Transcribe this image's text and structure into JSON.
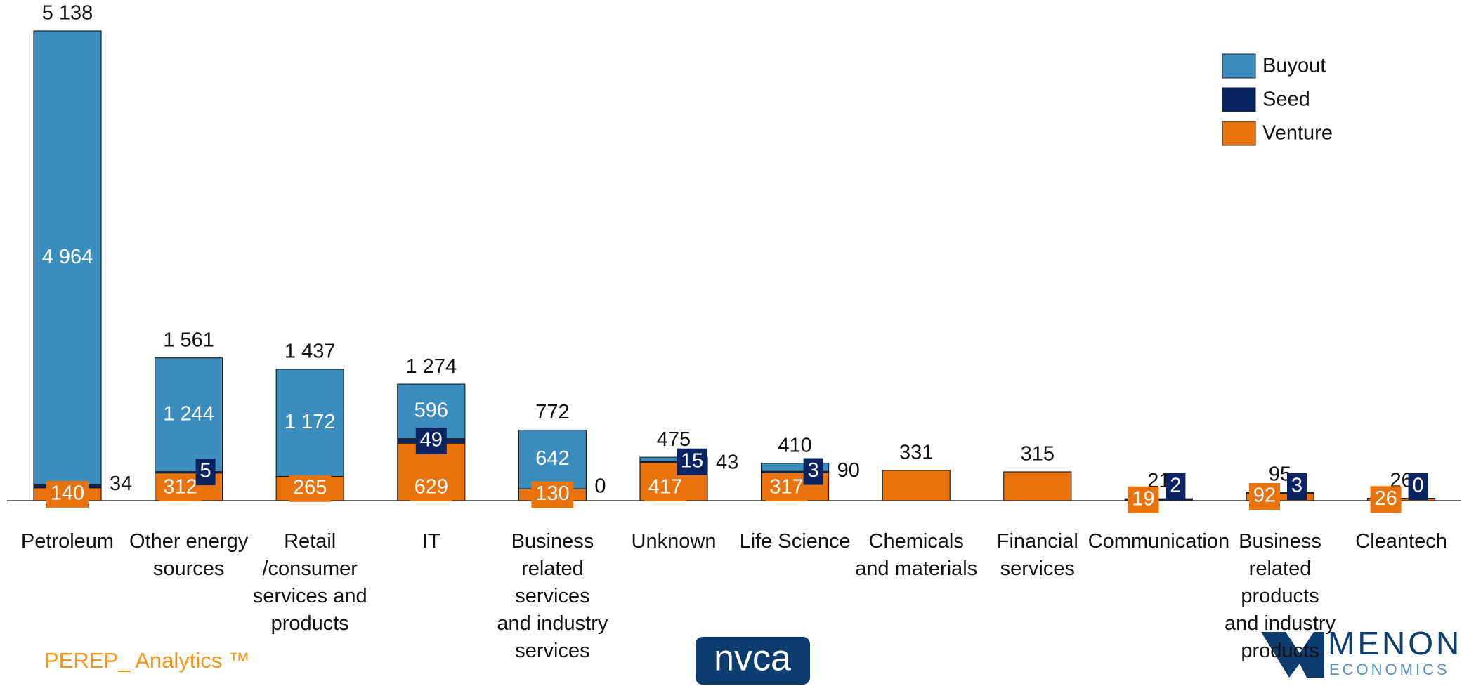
{
  "chart_data": {
    "type": "stacked_bar",
    "categories": [
      "Petroleum",
      "Other energy\nsources",
      "Retail\n/consumer\nservices and\nproducts",
      "IT",
      "Business\nrelated\nservices\nand industry\nservices",
      "Unknown",
      "Life Science",
      "Chemicals\nand materials",
      "Financial\nservices",
      "Communication",
      "Business\nrelated\nproducts\nand industry\nproducts",
      "Cleantech"
    ],
    "series": [
      {
        "name": "Venture",
        "color": "#e8730c",
        "values": [
          140,
          312,
          265,
          629,
          130,
          417,
          317,
          331,
          315,
          19,
          92,
          26
        ]
      },
      {
        "name": "Seed",
        "color": "#0a2463",
        "values": [
          34,
          5,
          null,
          49,
          0,
          15,
          3,
          null,
          null,
          2,
          3,
          0
        ]
      },
      {
        "name": "Buyout",
        "color": "#3a8dbd",
        "values": [
          4964,
          1244,
          1172,
          596,
          642,
          43,
          90,
          null,
          null,
          null,
          null,
          null
        ],
        "value_labels": [
          "4 964",
          "1 244",
          "1 172",
          "596",
          "642",
          "43",
          "90",
          null,
          null,
          null,
          null,
          null
        ]
      }
    ],
    "totals": [
      5138,
      1561,
      1437,
      1274,
      772,
      475,
      410,
      331,
      315,
      21,
      95,
      26
    ],
    "totals_labels": [
      "5 138",
      "1 561",
      "1 437",
      "1 274",
      "772",
      "475",
      "410",
      "331",
      "315",
      "21",
      "95",
      "26"
    ],
    "legend": "top-right"
  },
  "footer": {
    "brand": "PEREP_ Analytics ™",
    "logo": "nvca",
    "partner": "MENON",
    "partner_sub": "ECONOMICS"
  }
}
